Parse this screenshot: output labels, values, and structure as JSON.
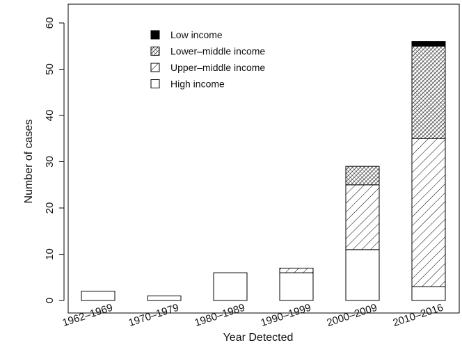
{
  "chart_data": {
    "type": "bar",
    "stacked": true,
    "title": "",
    "xlabel": "Year Detected",
    "ylabel": "Number of cases",
    "ylim": [
      0,
      60
    ],
    "yticks": [
      0,
      10,
      20,
      30,
      40,
      50,
      60
    ],
    "categories": [
      "1962–1969",
      "1970–1979",
      "1980–1989",
      "1990–1999",
      "2000–2009",
      "2010–2016"
    ],
    "series": [
      {
        "name": "High income",
        "pattern": "none",
        "values": [
          2,
          1,
          6,
          6,
          11,
          3
        ]
      },
      {
        "name": "Upper–middle income",
        "pattern": "diagonal-hatch",
        "values": [
          0,
          0,
          0,
          1,
          14,
          32
        ]
      },
      {
        "name": "Lower–middle income",
        "pattern": "dense-crosshatch",
        "values": [
          0,
          0,
          0,
          0,
          4,
          20
        ]
      },
      {
        "name": "Low income",
        "pattern": "solid",
        "values": [
          0,
          0,
          0,
          0,
          0,
          1
        ]
      }
    ],
    "legend": {
      "placement": "top-center",
      "order": [
        "Low income",
        "Lower–middle income",
        "Upper–middle income",
        "High income"
      ]
    },
    "grid": false,
    "colors": {
      "stroke": "#000000",
      "background": "#ffffff"
    }
  }
}
